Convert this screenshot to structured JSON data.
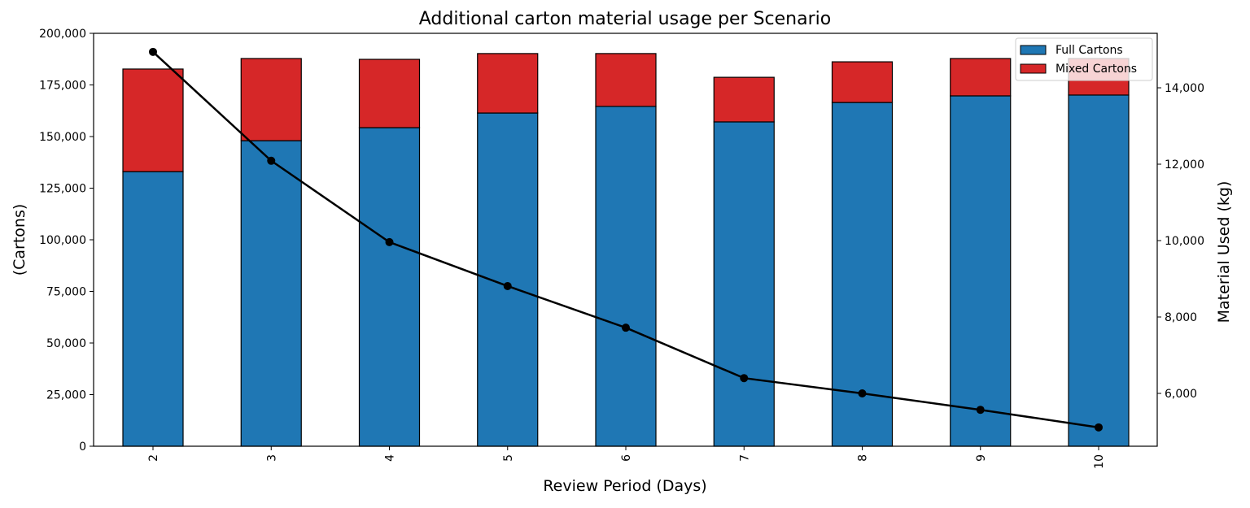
{
  "chart_data": {
    "type": "bar",
    "title": "Additional carton material usage per Scenario",
    "xlabel": "Review Period (Days)",
    "ylabel": "(Cartons)",
    "y2label": "Material Used (kg)",
    "categories": [
      "2",
      "3",
      "4",
      "5",
      "6",
      "7",
      "8",
      "9",
      "10"
    ],
    "series": [
      {
        "name": "Full Cartons",
        "type": "bar",
        "stack": "cartons",
        "axis": "left",
        "color": "#1f77b4",
        "values": [
          133000,
          148000,
          154300,
          161400,
          164600,
          157100,
          166500,
          169700,
          170100
        ]
      },
      {
        "name": "Mixed Cartons",
        "type": "bar",
        "stack": "cartons",
        "axis": "left",
        "color": "#d62728",
        "values": [
          49700,
          39800,
          33100,
          28800,
          25600,
          21600,
          19700,
          18100,
          17700
        ]
      },
      {
        "name": "Material Used",
        "type": "line",
        "axis": "right",
        "color": "#000000",
        "values": [
          14940,
          12090,
          9960,
          8810,
          7720,
          6400,
          6000,
          5570,
          5110
        ]
      }
    ],
    "ylim": [
      0,
      200000
    ],
    "yticks": [
      0,
      25000,
      50000,
      75000,
      100000,
      125000,
      150000,
      175000,
      200000
    ],
    "ytick_labels": [
      "0",
      "25,000",
      "50,000",
      "75,000",
      "100,000",
      "125,000",
      "150,000",
      "175,000",
      "200,000"
    ],
    "y2lim": [
      4617,
      15426
    ],
    "y2ticks": [
      6000,
      8000,
      10000,
      12000,
      14000
    ],
    "y2tick_labels": [
      "6,000",
      "8,000",
      "10,000",
      "12,000",
      "14,000"
    ],
    "legend": {
      "placement": "top-right",
      "entries": [
        "Full Cartons",
        "Mixed Cartons"
      ]
    },
    "grid": false
  }
}
